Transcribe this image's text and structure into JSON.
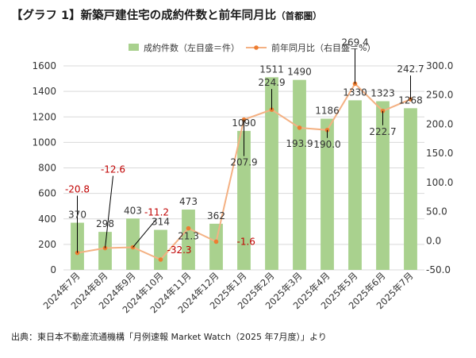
{
  "title": "【グラフ 1】新築戸建住宅の成約件数と前年同月比",
  "title_suffix": "（首都圏）",
  "source": "出典：東日本不動産流通機構「月例速報 Market Watch（2025 年7月度）」より",
  "colors": {
    "bar": "#a9d18e",
    "line": "#f4b183",
    "marker": "#ed7d31",
    "negative_label": "#c00000",
    "positive_label": "#333333",
    "grid": "#d9d9d9",
    "leader": "#000000"
  },
  "chart_data": {
    "type": "bar",
    "categories": [
      "2024年7月",
      "2024年8月",
      "2024年9月",
      "2024年10月",
      "2024年11月",
      "2024年12月",
      "2025年1月",
      "2025年2月",
      "2025年3月",
      "2025年4月",
      "2025年5月",
      "2025年6月",
      "2025年7月"
    ],
    "series": [
      {
        "name": "成約件数（左目盛＝件）",
        "type": "bar",
        "axis": "left",
        "values": [
          370,
          298,
          403,
          314,
          473,
          362,
          1090,
          1511,
          1490,
          1186,
          1330,
          1323,
          1268
        ]
      },
      {
        "name": "前年同月比（右目盛＝%）",
        "type": "line",
        "axis": "right",
        "values": [
          -20.8,
          -12.6,
          -11.2,
          -32.3,
          21.3,
          -1.6,
          207.9,
          224.9,
          193.9,
          190.0,
          269.4,
          222.7,
          242.7
        ],
        "labels": [
          "-20.8",
          "-12.6",
          "-11.2",
          "-32.3",
          "21.3",
          "-1.6",
          "207.9",
          "224.9",
          "193.9",
          "190.0",
          "269.4",
          "222.7",
          "242.7"
        ]
      }
    ],
    "y_left": {
      "min": 0,
      "max": 1600,
      "ticks": [
        "0",
        "200",
        "400",
        "600",
        "800",
        "1000",
        "1200",
        "1400",
        "1600"
      ]
    },
    "y_right": {
      "min": -50,
      "max": 300,
      "ticks": [
        "-50.0",
        "0.0",
        "50.0",
        "100.0",
        "150.0",
        "200.0",
        "250.0",
        "300.0"
      ]
    },
    "grid": true,
    "legend_position": "top-center"
  }
}
